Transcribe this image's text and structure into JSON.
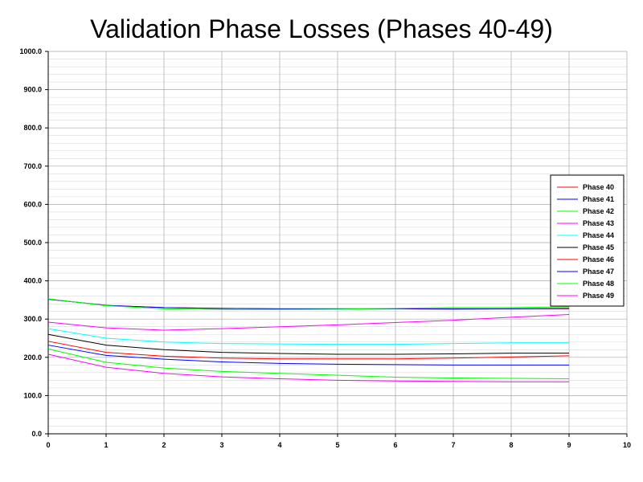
{
  "chart_data": {
    "type": "line",
    "title": "Validation Phase Losses (Phases 40-49)",
    "xlabel": "",
    "ylabel": "",
    "xlim": [
      0,
      10
    ],
    "ylim": [
      0,
      1000
    ],
    "x_ticks": [
      "0",
      "1",
      "2",
      "3",
      "4",
      "5",
      "6",
      "7",
      "8",
      "9",
      "10"
    ],
    "y_ticks": [
      "0.0",
      "100.0",
      "200.0",
      "300.0",
      "400.0",
      "500.0",
      "600.0",
      "700.0",
      "800.0",
      "900.0",
      "1000.0"
    ],
    "grid": true,
    "legend_position": "right",
    "x": [
      0,
      1,
      2,
      3,
      4,
      5,
      6,
      7,
      8,
      9
    ],
    "series": [
      {
        "name": "Phase 40",
        "color": "#ff0000",
        "values": [
          352,
          336,
          330,
          328,
          327,
          327,
          327,
          326,
          327,
          327
        ]
      },
      {
        "name": "Phase 41",
        "color": "#0000ff",
        "values": [
          352,
          336,
          330,
          328,
          327,
          327,
          327,
          327,
          327,
          328
        ]
      },
      {
        "name": "Phase 42",
        "color": "#00ff00",
        "values": [
          353,
          335,
          327,
          325,
          325,
          326,
          328,
          330,
          330,
          332
        ]
      },
      {
        "name": "Phase 43",
        "color": "#ff00ff",
        "values": [
          292,
          277,
          271,
          275,
          280,
          285,
          291,
          297,
          305,
          312
        ]
      },
      {
        "name": "Phase 44",
        "color": "#00ffff",
        "values": [
          275,
          250,
          240,
          236,
          235,
          234,
          234,
          236,
          238,
          238
        ]
      },
      {
        "name": "Phase 45",
        "color": "#000000",
        "values": [
          260,
          232,
          220,
          213,
          210,
          208,
          208,
          209,
          211,
          211
        ]
      },
      {
        "name": "Phase 46",
        "color": "#ff0000",
        "values": [
          242,
          213,
          203,
          198,
          196,
          196,
          196,
          198,
          201,
          204
        ]
      },
      {
        "name": "Phase 47",
        "color": "#0000ff",
        "values": [
          232,
          205,
          195,
          188,
          184,
          182,
          181,
          180,
          180,
          180
        ]
      },
      {
        "name": "Phase 48",
        "color": "#00ff00",
        "values": [
          222,
          187,
          172,
          163,
          158,
          153,
          148,
          146,
          145,
          144
        ]
      },
      {
        "name": "Phase 49",
        "color": "#ff00ff",
        "values": [
          208,
          174,
          158,
          149,
          144,
          140,
          138,
          137,
          136,
          136
        ]
      }
    ]
  }
}
